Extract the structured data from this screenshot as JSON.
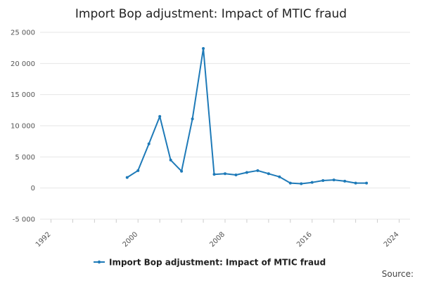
{
  "chart_data": {
    "type": "line",
    "title": "Import Bop adjustment: Impact of MTIC fraud",
    "xlabel": "",
    "ylabel": "",
    "xlim": [
      1991,
      2025
    ],
    "ylim": [
      -5000,
      25000
    ],
    "x_ticks": [
      1992,
      2000,
      2008,
      2016,
      2024
    ],
    "y_ticks": [
      -5000,
      0,
      5000,
      10000,
      15000,
      20000,
      25000
    ],
    "y_tick_labels": [
      "-5 000",
      "0",
      "5 000",
      "10 000",
      "15 000",
      "20 000",
      "25 000"
    ],
    "grid": "horizontal",
    "legend": "bottom-center",
    "series": [
      {
        "name": "Import Bop adjustment: Impact of MTIC fraud",
        "color": "#1e7ab8",
        "x": [
          1999,
          2000,
          2001,
          2002,
          2003,
          2004,
          2005,
          2006,
          2007,
          2008,
          2009,
          2010,
          2011,
          2012,
          2013,
          2014,
          2015,
          2016,
          2017,
          2018,
          2019,
          2020,
          2021
        ],
        "values": [
          1700,
          2800,
          7100,
          11500,
          4500,
          2700,
          11100,
          22400,
          2200,
          2300,
          2100,
          2500,
          2800,
          2300,
          1800,
          800,
          700,
          900,
          1200,
          1300,
          1100,
          800,
          800
        ]
      }
    ],
    "source_label": "Source:"
  }
}
